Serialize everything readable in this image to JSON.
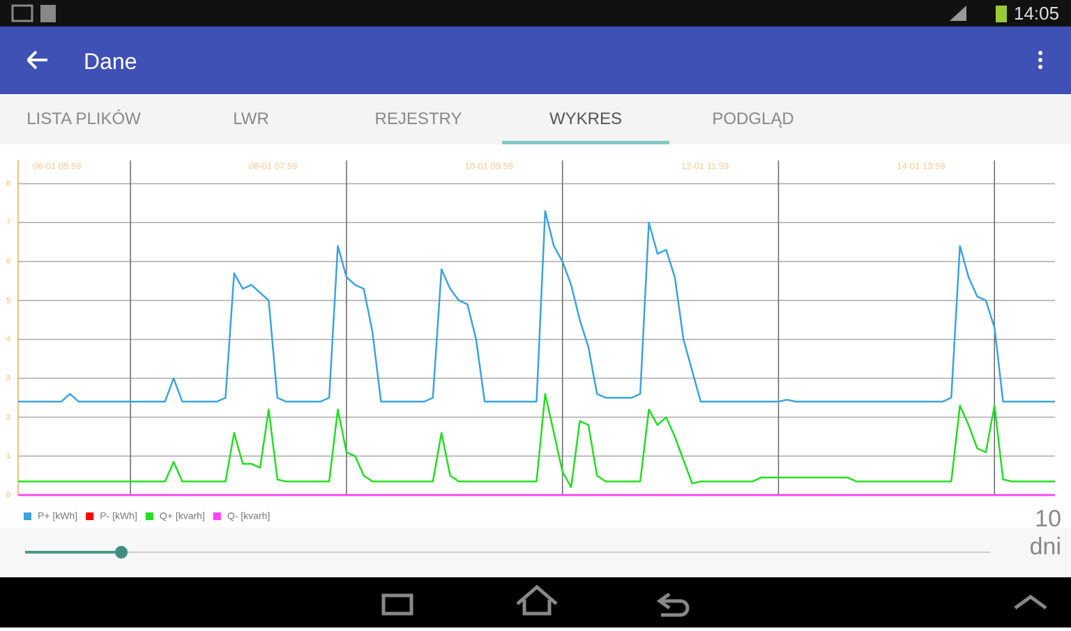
{
  "status_bar": {
    "time": "14:05"
  },
  "app_bar": {
    "title": "Dane"
  },
  "tabs": [
    "LISTA PLIKÓW",
    "LWR",
    "REJESTRY",
    "WYKRES",
    "PODGLĄD"
  ],
  "chart_data": {
    "type": "line",
    "x": [
      0,
      2,
      4,
      6,
      8,
      10,
      12,
      14,
      16,
      18,
      20,
      22,
      24,
      26,
      28,
      30,
      32,
      34,
      36,
      38,
      40,
      42,
      44,
      46,
      48,
      50,
      52,
      54,
      56,
      58,
      60,
      62,
      64,
      66,
      68,
      70,
      72,
      74,
      76,
      78,
      80,
      82,
      84,
      86,
      88,
      90,
      92,
      94,
      96,
      98,
      100,
      102,
      104,
      106,
      108,
      110,
      112,
      114,
      116,
      118,
      120,
      122,
      124,
      126,
      128,
      130,
      132,
      134,
      136,
      138,
      140,
      142,
      144,
      146,
      148,
      150,
      152,
      154,
      156,
      158,
      160,
      162,
      164,
      166,
      168,
      170,
      172,
      174,
      176,
      178,
      180,
      182,
      184,
      186,
      188,
      190,
      192,
      194,
      196,
      198,
      200,
      202,
      204,
      206,
      208,
      210,
      212,
      214,
      216,
      218,
      220,
      222,
      224,
      226,
      228,
      230,
      232,
      234,
      236,
      238,
      240
    ],
    "xlim": [
      0,
      240
    ],
    "xticks": [
      {
        "value": 26,
        "label": "06-01 05:59"
      },
      {
        "value": 76,
        "label": "08-01 07:59"
      },
      {
        "value": 126,
        "label": "10-01 09:59"
      },
      {
        "value": 176,
        "label": "12-01 11:59"
      },
      {
        "value": 226,
        "label": "14-01 13:59"
      }
    ],
    "ylim": [
      0,
      8.6
    ],
    "yticks": [
      0,
      1,
      2,
      3,
      4,
      5,
      6,
      7,
      8
    ],
    "grid": true,
    "series": [
      {
        "name": "P+ [kWh]",
        "color": "#3aa3dc",
        "values": [
          2.4,
          2.4,
          2.4,
          2.4,
          2.4,
          2.4,
          2.6,
          2.4,
          2.4,
          2.4,
          2.4,
          2.4,
          2.4,
          2.4,
          2.4,
          2.4,
          2.4,
          2.4,
          3.0,
          2.4,
          2.4,
          2.4,
          2.4,
          2.4,
          2.5,
          5.7,
          5.3,
          5.4,
          5.2,
          5.0,
          2.5,
          2.4,
          2.4,
          2.4,
          2.4,
          2.4,
          2.5,
          6.4,
          5.6,
          5.4,
          5.3,
          4.2,
          2.4,
          2.4,
          2.4,
          2.4,
          2.4,
          2.4,
          2.5,
          5.8,
          5.3,
          5.0,
          4.9,
          4.0,
          2.4,
          2.4,
          2.4,
          2.4,
          2.4,
          2.4,
          2.4,
          7.3,
          6.4,
          6.0,
          5.4,
          4.5,
          3.8,
          2.6,
          2.5,
          2.5,
          2.5,
          2.5,
          2.6,
          7.0,
          6.2,
          6.3,
          5.6,
          4.0,
          3.2,
          2.4,
          2.4,
          2.4,
          2.4,
          2.4,
          2.4,
          2.4,
          2.4,
          2.4,
          2.4,
          2.45,
          2.4,
          2.4,
          2.4,
          2.4,
          2.4,
          2.4,
          2.4,
          2.4,
          2.4,
          2.4,
          2.4,
          2.4,
          2.4,
          2.4,
          2.4,
          2.4,
          2.4,
          2.4,
          2.5,
          6.4,
          5.6,
          5.1,
          5.0,
          4.3,
          2.4,
          2.4,
          2.4,
          2.4,
          2.4,
          2.4,
          2.4
        ]
      },
      {
        "name": "P- [kWh]",
        "color": "#ff0000",
        "values": [
          0,
          0,
          0,
          0,
          0,
          0,
          0,
          0,
          0,
          0,
          0,
          0,
          0,
          0,
          0,
          0,
          0,
          0,
          0,
          0,
          0,
          0,
          0,
          0,
          0,
          0,
          0,
          0,
          0,
          0,
          0,
          0,
          0,
          0,
          0,
          0,
          0,
          0,
          0,
          0,
          0,
          0,
          0,
          0,
          0,
          0,
          0,
          0,
          0,
          0,
          0,
          0,
          0,
          0,
          0,
          0,
          0,
          0,
          0,
          0,
          0,
          0,
          0,
          0,
          0,
          0,
          0,
          0,
          0,
          0,
          0,
          0,
          0,
          0,
          0,
          0,
          0,
          0,
          0,
          0,
          0,
          0,
          0,
          0,
          0,
          0,
          0,
          0,
          0,
          0,
          0,
          0,
          0,
          0,
          0,
          0,
          0,
          0,
          0,
          0,
          0,
          0,
          0,
          0,
          0,
          0,
          0,
          0,
          0,
          0,
          0,
          0,
          0,
          0,
          0,
          0,
          0,
          0,
          0,
          0,
          0
        ]
      },
      {
        "name": "Q+ [kvarh]",
        "color": "#22dd22",
        "values": [
          0.35,
          0.35,
          0.35,
          0.35,
          0.35,
          0.35,
          0.35,
          0.35,
          0.35,
          0.35,
          0.35,
          0.35,
          0.35,
          0.35,
          0.35,
          0.35,
          0.35,
          0.35,
          0.85,
          0.35,
          0.35,
          0.35,
          0.35,
          0.35,
          0.35,
          1.6,
          0.8,
          0.8,
          0.7,
          2.2,
          0.4,
          0.35,
          0.35,
          0.35,
          0.35,
          0.35,
          0.35,
          2.2,
          1.1,
          1.0,
          0.5,
          0.35,
          0.35,
          0.35,
          0.35,
          0.35,
          0.35,
          0.35,
          0.35,
          1.6,
          0.5,
          0.35,
          0.35,
          0.35,
          0.35,
          0.35,
          0.35,
          0.35,
          0.35,
          0.35,
          0.35,
          2.6,
          1.6,
          0.6,
          0.2,
          1.9,
          1.8,
          0.5,
          0.35,
          0.35,
          0.35,
          0.35,
          0.35,
          2.2,
          1.8,
          2.0,
          1.5,
          0.9,
          0.3,
          0.35,
          0.35,
          0.35,
          0.35,
          0.35,
          0.35,
          0.35,
          0.45,
          0.45,
          0.45,
          0.45,
          0.45,
          0.45,
          0.45,
          0.45,
          0.45,
          0.45,
          0.45,
          0.35,
          0.35,
          0.35,
          0.35,
          0.35,
          0.35,
          0.35,
          0.35,
          0.35,
          0.35,
          0.35,
          0.35,
          2.3,
          1.8,
          1.2,
          1.1,
          2.3,
          0.4,
          0.35,
          0.35,
          0.35,
          0.35,
          0.35,
          0.35
        ]
      },
      {
        "name": "Q- [kvarh]",
        "color": "#ff44ff",
        "values": [
          0,
          0,
          0,
          0,
          0,
          0,
          0,
          0,
          0,
          0,
          0,
          0,
          0,
          0,
          0,
          0,
          0,
          0,
          0,
          0,
          0,
          0,
          0,
          0,
          0,
          0,
          0,
          0,
          0,
          0,
          0,
          0,
          0,
          0,
          0,
          0,
          0,
          0,
          0,
          0,
          0,
          0,
          0,
          0,
          0,
          0,
          0,
          0,
          0,
          0,
          0,
          0,
          0,
          0,
          0,
          0,
          0,
          0,
          0,
          0,
          0,
          0,
          0,
          0,
          0,
          0,
          0,
          0,
          0,
          0,
          0,
          0,
          0,
          0,
          0,
          0,
          0,
          0,
          0,
          0,
          0,
          0,
          0,
          0,
          0,
          0,
          0,
          0,
          0,
          0,
          0,
          0,
          0,
          0,
          0,
          0,
          0,
          0,
          0,
          0,
          0,
          0,
          0,
          0,
          0,
          0,
          0,
          0,
          0,
          0,
          0,
          0,
          0,
          0,
          0,
          0,
          0,
          0,
          0,
          0,
          0
        ]
      }
    ]
  },
  "range": {
    "value": "10",
    "unit": "dni"
  }
}
